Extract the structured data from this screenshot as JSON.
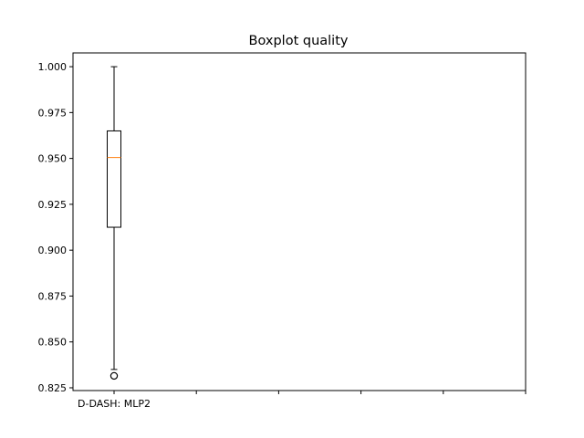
{
  "chart_data": {
    "type": "boxplot",
    "title": "Boxplot quality",
    "xlabel": "",
    "ylabel": "",
    "ylim": [
      0.8235,
      1.0075
    ],
    "yticks": [
      "1.000",
      "0.975",
      "0.950",
      "0.925",
      "0.900",
      "0.875",
      "0.850",
      "0.825"
    ],
    "ytick_values": [
      1.0,
      0.975,
      0.95,
      0.925,
      0.9,
      0.875,
      0.85,
      0.825
    ],
    "categories": [
      "D-DASH: MLP2",
      "",
      "",
      "",
      "",
      ""
    ],
    "boxes": [
      {
        "category": "D-DASH: MLP2",
        "whisker_low": 0.835,
        "q1": 0.9125,
        "median": 0.9505,
        "q3": 0.965,
        "whisker_high": 1.0,
        "outliers": [
          0.8315
        ]
      }
    ],
    "grid": false,
    "legend": "none",
    "colors": {
      "box": "#000000",
      "median": "#ff7f0e",
      "outlier": "#000000"
    }
  }
}
